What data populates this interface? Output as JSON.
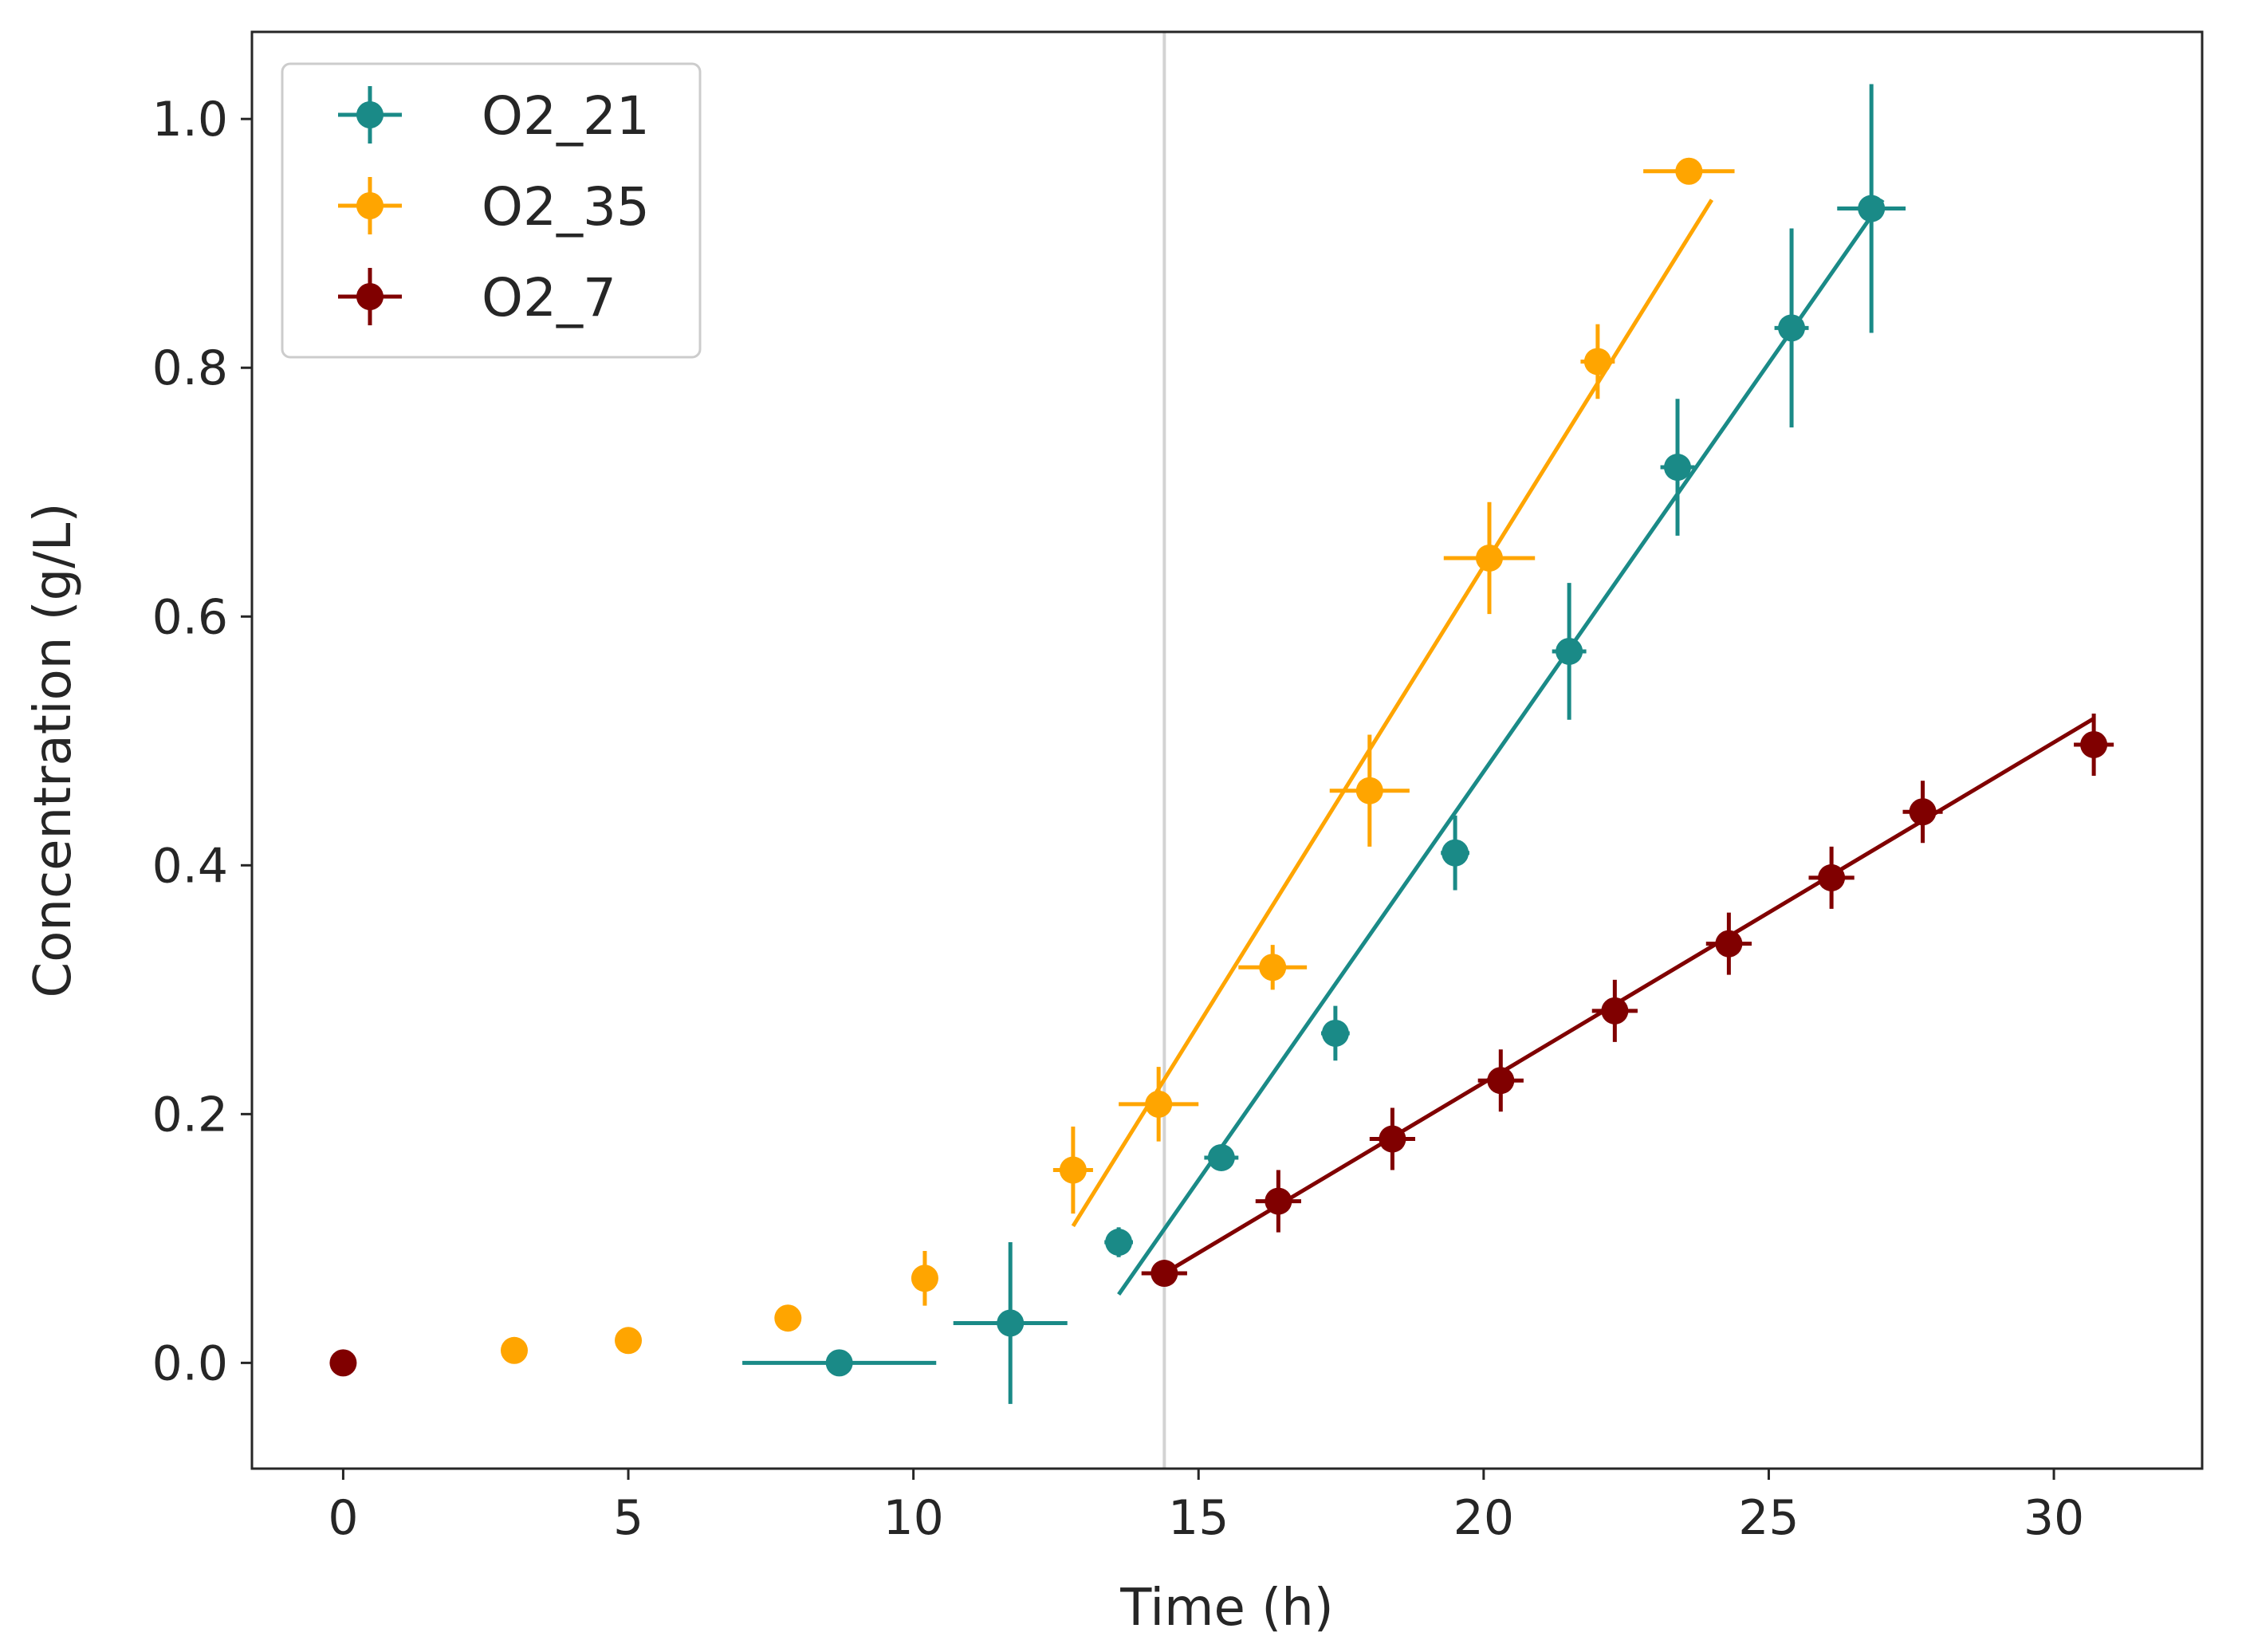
{
  "chart_data": {
    "type": "scatter",
    "title": "",
    "xlabel": "Time (h)",
    "ylabel": "Concentration (g/L)",
    "xlim": [
      -1.6,
      32.6
    ],
    "ylim": [
      -0.085,
      1.07
    ],
    "xticks": [
      0,
      5,
      10,
      15,
      20,
      25,
      30
    ],
    "yticks": [
      0.0,
      0.2,
      0.4,
      0.6,
      0.8,
      1.0
    ],
    "xtick_labels": [
      "0",
      "5",
      "10",
      "15",
      "20",
      "25",
      "30"
    ],
    "ytick_labels": [
      "0.0",
      "0.2",
      "0.4",
      "0.6",
      "0.8",
      "1.0"
    ],
    "vline": {
      "x": 14.4,
      "color": "#d3d3d3"
    },
    "legend_position": "top-left",
    "series": [
      {
        "name": "O2_21",
        "color": "#1a8a87",
        "points": [
          {
            "x": 8.7,
            "y": 0.0,
            "xerr": 1.7,
            "yerr": 0.0
          },
          {
            "x": 11.7,
            "y": 0.032,
            "xerr": 1.0,
            "yerr": 0.065
          },
          {
            "x": 13.6,
            "y": 0.097,
            "xerr": 0.25,
            "yerr": 0.012
          },
          {
            "x": 15.4,
            "y": 0.165,
            "xerr": 0.3,
            "yerr": 0.01
          },
          {
            "x": 17.4,
            "y": 0.265,
            "xerr": 0.25,
            "yerr": 0.022
          },
          {
            "x": 19.5,
            "y": 0.41,
            "xerr": 0.25,
            "yerr": 0.03
          },
          {
            "x": 21.5,
            "y": 0.572,
            "xerr": 0.3,
            "yerr": 0.055
          },
          {
            "x": 23.4,
            "y": 0.72,
            "xerr": 0.3,
            "yerr": 0.055
          },
          {
            "x": 25.4,
            "y": 0.832,
            "xerr": 0.3,
            "yerr": 0.08
          },
          {
            "x": 26.8,
            "y": 0.928,
            "xerr": 0.6,
            "yerr": 0.1
          }
        ],
        "fit_line": {
          "x": [
            13.6,
            27.0
          ],
          "y": [
            0.055,
            0.935
          ]
        }
      },
      {
        "name": "O2_35",
        "color": "#ffa500",
        "points": [
          {
            "x": 3.0,
            "y": 0.01,
            "xerr": 0.0,
            "yerr": 0.0
          },
          {
            "x": 5.0,
            "y": 0.018,
            "xerr": 0.0,
            "yerr": 0.0
          },
          {
            "x": 7.8,
            "y": 0.036,
            "xerr": 0.0,
            "yerr": 0.0
          },
          {
            "x": 10.2,
            "y": 0.068,
            "xerr": 0.2,
            "yerr": 0.022
          },
          {
            "x": 12.8,
            "y": 0.155,
            "xerr": 0.35,
            "yerr": 0.035
          },
          {
            "x": 14.3,
            "y": 0.208,
            "xerr": 0.7,
            "yerr": 0.03
          },
          {
            "x": 16.3,
            "y": 0.318,
            "xerr": 0.6,
            "yerr": 0.018
          },
          {
            "x": 18.0,
            "y": 0.46,
            "xerr": 0.7,
            "yerr": 0.045
          },
          {
            "x": 20.1,
            "y": 0.647,
            "xerr": 0.8,
            "yerr": 0.045
          },
          {
            "x": 22.0,
            "y": 0.805,
            "xerr": 0.3,
            "yerr": 0.03
          },
          {
            "x": 23.6,
            "y": 0.958,
            "xerr": 0.8,
            "yerr": 0.0
          }
        ],
        "fit_line": {
          "x": [
            12.8,
            24.0
          ],
          "y": [
            0.11,
            0.935
          ]
        }
      },
      {
        "name": "O2_7",
        "color": "#800000",
        "points": [
          {
            "x": 0.0,
            "y": 0.0,
            "xerr": 0.0,
            "yerr": 0.0
          },
          {
            "x": 14.4,
            "y": 0.072,
            "xerr": 0.4,
            "yerr": 0.01
          },
          {
            "x": 16.4,
            "y": 0.13,
            "xerr": 0.4,
            "yerr": 0.025
          },
          {
            "x": 18.4,
            "y": 0.18,
            "xerr": 0.4,
            "yerr": 0.025
          },
          {
            "x": 20.3,
            "y": 0.227,
            "xerr": 0.4,
            "yerr": 0.025
          },
          {
            "x": 22.3,
            "y": 0.283,
            "xerr": 0.4,
            "yerr": 0.025
          },
          {
            "x": 24.3,
            "y": 0.337,
            "xerr": 0.4,
            "yerr": 0.025
          },
          {
            "x": 26.1,
            "y": 0.39,
            "xerr": 0.4,
            "yerr": 0.025
          },
          {
            "x": 27.7,
            "y": 0.443,
            "xerr": 0.35,
            "yerr": 0.025
          },
          {
            "x": 30.7,
            "y": 0.497,
            "xerr": 0.35,
            "yerr": 0.025
          }
        ],
        "fit_line": {
          "x": [
            14.4,
            30.7
          ],
          "y": [
            0.072,
            0.518
          ]
        }
      }
    ]
  }
}
